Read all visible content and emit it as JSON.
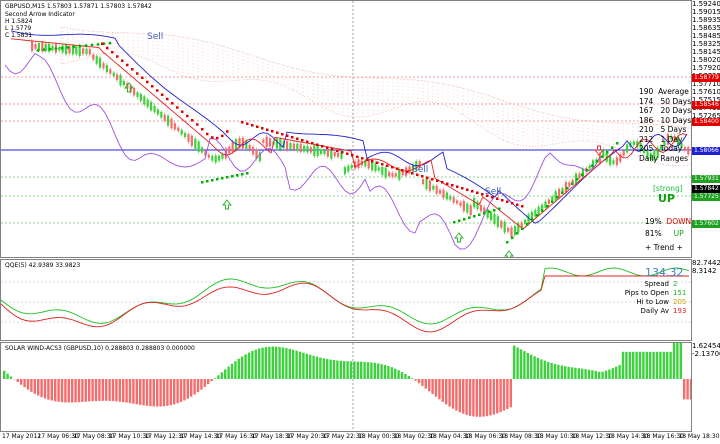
{
  "window": {
    "symbol_line": "GBPUSD,M15  1.57803 1.57871 1.57803 1.57842",
    "indicator_lines": [
      "Second Arrow Indicator",
      "H 1.5824",
      "L 1.5779",
      "C 1.5831"
    ]
  },
  "main_chart": {
    "signals": [
      "Sell",
      "Sell",
      "Sell"
    ],
    "price_levels": [
      "1.59240",
      "1.59015",
      "1.58935",
      "1.58635",
      "1.58485",
      "1.58325",
      "1.58145",
      "1.58020",
      "1.57920",
      "1.57755",
      "1.57710",
      "1.57610",
      "1.57515",
      "1.57415",
      "1.57265"
    ],
    "price_tags": [
      {
        "label": "1.58779",
        "color": "#e00000"
      },
      {
        "label": "1.58546",
        "color": "#e00000"
      },
      {
        "label": "1.58400",
        "color": "#e00000"
      },
      {
        "label": "1.58066",
        "color": "#2020d0"
      },
      {
        "label": "1.57931",
        "color": "#20a020"
      },
      {
        "label": "1.57842",
        "color": "#000000"
      },
      {
        "label": "1.57725",
        "color": "#20a020"
      },
      {
        "label": "1.57602",
        "color": "#20a020"
      }
    ],
    "ranges": {
      "average_label": "Average",
      "average_value": "190",
      "rows": [
        {
          "value": "174",
          "label": "50 Days"
        },
        {
          "value": "167",
          "label": "20 Days"
        },
        {
          "value": "186",
          "label": "10 Days"
        },
        {
          "value": "210",
          "label": "5 Days"
        },
        {
          "value": "212",
          "label": "1 Day"
        },
        {
          "value": "205",
          "label": "Today"
        }
      ],
      "title": "Daily Ranges"
    },
    "trend": {
      "strength": "[strong]",
      "direction": "UP",
      "down_pct": "19%",
      "down_label": "DOWN",
      "up_pct": "81%",
      "up_label": "UP",
      "footer": "+  Trend  +"
    }
  },
  "qqe": {
    "title": "QQE(5) 42.9389 33.9823",
    "big_value": "134.32",
    "rows": [
      {
        "label": "Spread",
        "value": "2"
      },
      {
        "label": "Pips to Open",
        "value": "151"
      },
      {
        "label": "Hi to Low",
        "value": "205"
      },
      {
        "label": "Daily Av",
        "value": "193"
      }
    ],
    "axis": [
      "82.7442",
      "8.3142"
    ]
  },
  "solar": {
    "title": "SOLAR WIND-ACS3 (GBPUSD,10) 0.288803 0.288803 0.000000",
    "axis": [
      "1.62454",
      "-2.13700"
    ]
  },
  "x_axis": [
    "17 May 2012",
    "17 May 06:30",
    "17 May 08:30",
    "17 May 10:30",
    "17 May 12:30",
    "17 May 14:30",
    "17 May 16:30",
    "17 May 18:30",
    "17 May 20:30",
    "17 May 22:30",
    "18 May 00:30",
    "18 May 02:30",
    "18 May 04:30",
    "18 May 06:30",
    "18 May 08:30",
    "18 May 10:30",
    "18 May 12:30",
    "18 May 14:30",
    "18 May 16:30",
    "18 May 18:30"
  ],
  "colors": {
    "bull": "#3cd23c",
    "bear": "#f46c6c",
    "sar_bear": "#e00000",
    "sar_bull": "#00b000",
    "ma_blue": "#2020d0",
    "ma_red": "#e82020",
    "purple": "#a050e0",
    "cloud": "#f0a0a0"
  }
}
